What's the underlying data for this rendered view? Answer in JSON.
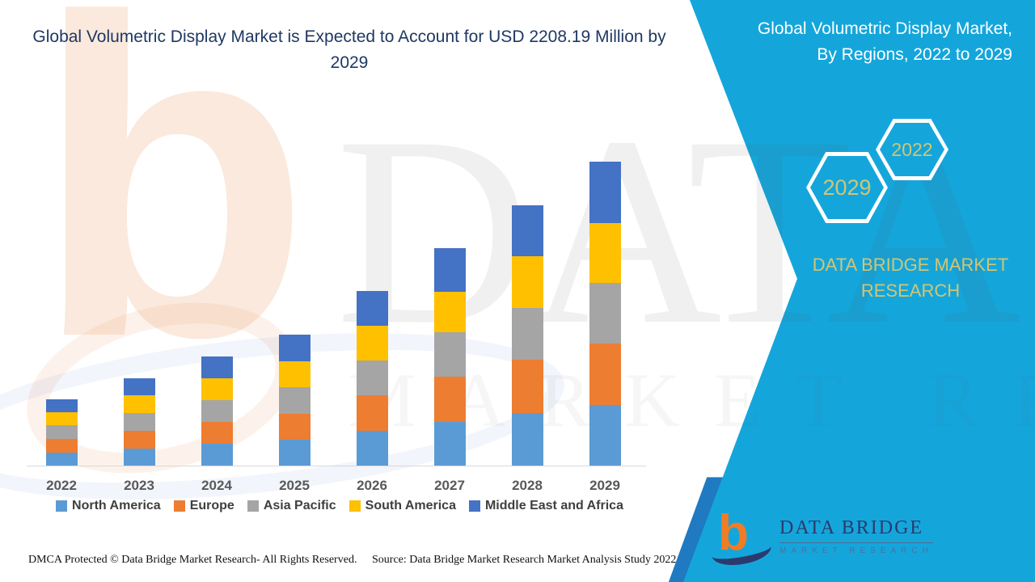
{
  "header": {
    "left_title": "Global Volumetric Display Market is Expected to Account for USD 2208.19 Million by 2029",
    "right_title_line1": "Global Volumetric Display Market,",
    "right_title_line2": "By Regions, 2022 to 2029"
  },
  "side_panel": {
    "accent_color": "#14A6DB",
    "gold_color": "#D2C573",
    "hexagons": [
      {
        "label": "2029"
      },
      {
        "label": "2022"
      }
    ],
    "brand_line1": "DATA BRIDGE MARKET",
    "brand_line2": "RESEARCH"
  },
  "chart_data": {
    "type": "bar",
    "stacked": true,
    "title": "Global Volumetric Display Market, By Regions, 2022 to 2029",
    "unit": "USD Million",
    "categories": [
      "2022",
      "2023",
      "2024",
      "2025",
      "2026",
      "2027",
      "2028",
      "2029"
    ],
    "series": [
      {
        "name": "North America",
        "color": "#5B9BD5",
        "values": [
          92,
          125,
          157,
          189,
          250,
          317,
          382,
          441
        ]
      },
      {
        "name": "Europe",
        "color": "#ED7D31",
        "values": [
          98,
          127,
          158,
          190,
          257,
          329,
          388,
          446
        ]
      },
      {
        "name": "Asia Pacific",
        "color": "#A5A5A5",
        "values": [
          97,
          131,
          156,
          195,
          253,
          323,
          376,
          441
        ]
      },
      {
        "name": "South America",
        "color": "#FFC000",
        "values": [
          95,
          127,
          158,
          186,
          252,
          294,
          376,
          435
        ]
      },
      {
        "name": "Middle East and Africa",
        "color": "#4472C4",
        "values": [
          94,
          124,
          158,
          191,
          251,
          317,
          370,
          445.19
        ]
      }
    ],
    "totals": [
      476,
      634,
      787,
      951,
      1263,
      1580,
      1892,
      2208.19
    ],
    "annotation": "USD 2208.19 Million by 2029",
    "ylim": [
      0,
      2300
    ],
    "grid": false,
    "legend_position": "bottom"
  },
  "footer": {
    "dmca": "DMCA Protected © Data Bridge Market Research- All Rights Reserved.",
    "source": "Source: Data Bridge Market Research Market Analysis Study 2022"
  },
  "logo": {
    "glyph": "b",
    "name": "DATA BRIDGE",
    "subtitle": "MARKET RESEARCH"
  },
  "watermark": {
    "line1": "DATA BRIDGE",
    "line2": "MARKET RESEARCH"
  }
}
